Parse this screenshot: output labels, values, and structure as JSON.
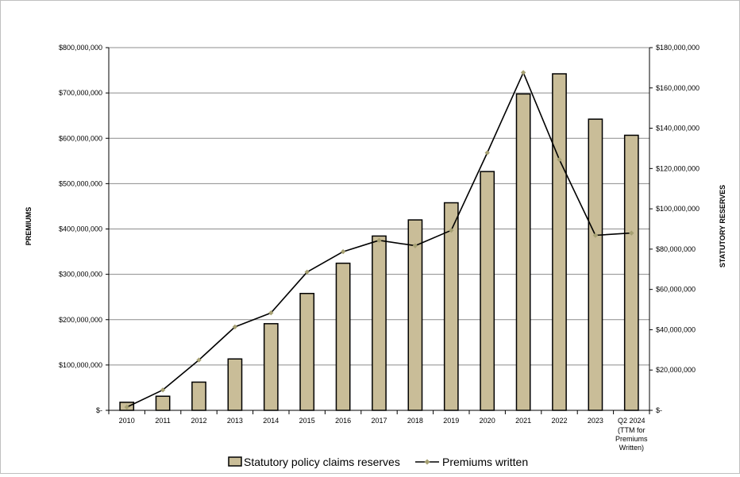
{
  "chart_data": {
    "type": "bar",
    "title": "",
    "xlabel": "",
    "ylabel": "PREMIUMS",
    "y2label": "STATUTORY RESERVES",
    "categories": [
      "2010",
      "2011",
      "2012",
      "2013",
      "2014",
      "2015",
      "2016",
      "2017",
      "2018",
      "2019",
      "2020",
      "2021",
      "2022",
      "2023",
      "Q2 2024"
    ],
    "category_sublabels": {
      "Q2 2024": [
        "(TTM for",
        "Premiums",
        "Written)"
      ]
    },
    "ylim": [
      0,
      800000000
    ],
    "y2lim": [
      0,
      180000000
    ],
    "yticks": [
      "$-",
      "$100,000,000",
      "$200,000,000",
      "$300,000,000",
      "$400,000,000",
      "$500,000,000",
      "$600,000,000",
      "$700,000,000",
      "$800,000,000"
    ],
    "y2ticks": [
      "$-",
      "$20,000,000",
      "$40,000,000",
      "$60,000,000",
      "$80,000,000",
      "$100,000,000",
      "$120,000,000",
      "$140,000,000",
      "$160,000,000",
      "$180,000,000"
    ],
    "grid": true,
    "legend_position": "bottom",
    "series": [
      {
        "name": "Statutory policy claims reserves",
        "type": "bar",
        "axis": "right",
        "color": "#c9bd98",
        "values": [
          4000000,
          7000000,
          14000000,
          25500000,
          43000000,
          58000000,
          73000000,
          86500000,
          94500000,
          103000000,
          118500000,
          157000000,
          167000000,
          144500000,
          136500000
        ]
      },
      {
        "name": "Premiums written",
        "type": "line",
        "axis": "left",
        "color": "#000000",
        "marker_color": "#a6a072",
        "values": [
          7000000,
          45000000,
          111000000,
          184000000,
          215000000,
          305000000,
          350000000,
          375000000,
          363000000,
          397000000,
          568000000,
          745000000,
          553000000,
          386000000,
          391000000
        ]
      }
    ]
  }
}
